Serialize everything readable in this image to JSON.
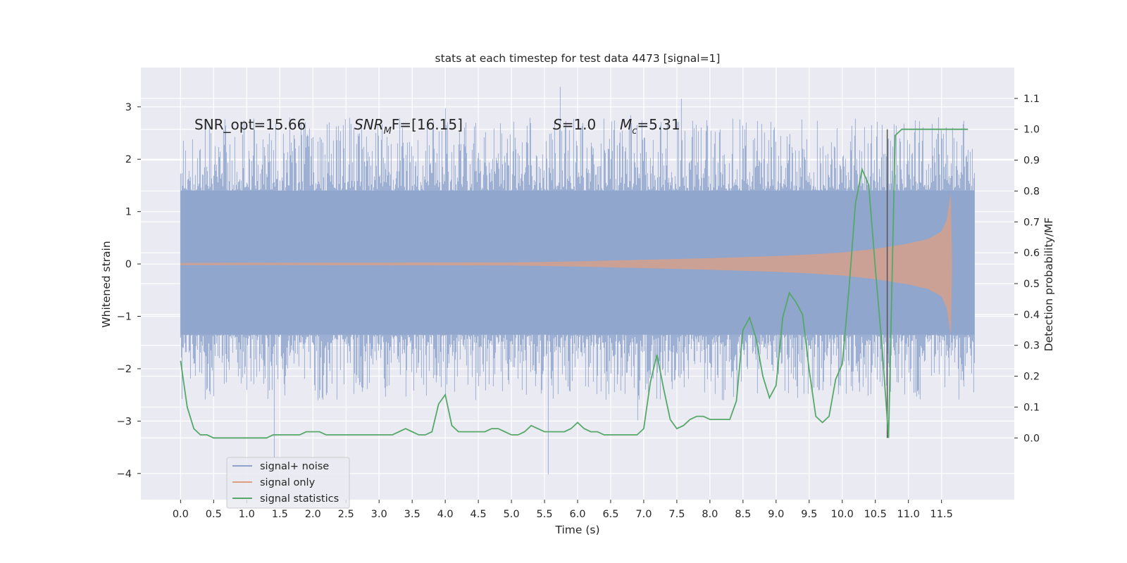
{
  "chart_data": {
    "type": "line",
    "title": "stats at each timestep for test data 4473 [signal=1]",
    "xlabel": "Time (s)",
    "ylabel": "Whitened strain",
    "y2label": "Detection probability/MF",
    "xlim": [
      -0.6,
      12.6
    ],
    "ylim": [
      -4.5,
      3.75
    ],
    "y2lim": [
      -0.2,
      1.2
    ],
    "x_ticks": [
      "0.0",
      "0.5",
      "1.0",
      "1.5",
      "2.0",
      "2.5",
      "3.0",
      "3.5",
      "4.0",
      "4.5",
      "5.0",
      "5.5",
      "6.0",
      "6.5",
      "7.0",
      "7.5",
      "8.0",
      "8.5",
      "9.0",
      "9.5",
      "10.0",
      "10.5",
      "11.0",
      "11.5"
    ],
    "y_ticks": [
      "3",
      "2",
      "1",
      "0",
      "−1",
      "−2",
      "−3",
      "−4"
    ],
    "y2_ticks": [
      "1.1",
      "1.0",
      "0.9",
      "0.8",
      "0.7",
      "0.6",
      "0.5",
      "0.4",
      "0.3",
      "0.2",
      "0.1",
      "0.0"
    ],
    "grid": true,
    "legend_position": "lower-left",
    "annotations": {
      "snr_opt": "SNR_opt=15.66",
      "snr_mf_main": "SNR",
      "snr_mf_sub": "M",
      "snr_mf_rest": "F=[16.15]",
      "s_italic": "S",
      "s_rest": "=1.0",
      "mc_main": "M",
      "mc_sub": "c",
      "mc_rest": "=5.31"
    },
    "marker_time": 10.68,
    "series": [
      {
        "name": "signal+ noise",
        "color": "#8fa4cc",
        "axis": "left",
        "envelope": {
          "x_range": [
            0.0,
            12.0
          ],
          "core_band": [
            -1.35,
            1.4
          ],
          "typical_peaks": [
            -2.1,
            2.3
          ],
          "extreme_max": 3.4,
          "extreme_min": -4.1
        }
      },
      {
        "name": "signal only",
        "color": "#dd9f80",
        "axis": "left",
        "amplitude": {
          "t": [
            0.0,
            5.0,
            6.0,
            7.0,
            8.0,
            9.0,
            9.5,
            10.0,
            10.5,
            11.0,
            11.3,
            11.5,
            11.58,
            11.62,
            11.64,
            11.66,
            12.0
          ],
          "a": [
            0.02,
            0.03,
            0.05,
            0.08,
            0.11,
            0.15,
            0.18,
            0.22,
            0.29,
            0.39,
            0.48,
            0.62,
            0.85,
            1.2,
            1.35,
            0.0,
            0.0
          ]
        }
      },
      {
        "name": "signal statistics",
        "color": "#55a868",
        "axis": "right",
        "x": [
          0.0,
          0.1,
          0.2,
          0.3,
          0.4,
          0.5,
          0.6,
          0.7,
          0.8,
          0.9,
          1.0,
          1.1,
          1.2,
          1.3,
          1.4,
          1.5,
          1.6,
          1.7,
          1.8,
          1.9,
          2.0,
          2.1,
          2.2,
          2.3,
          2.4,
          2.5,
          2.6,
          2.7,
          2.8,
          2.9,
          3.0,
          3.1,
          3.2,
          3.3,
          3.4,
          3.5,
          3.6,
          3.7,
          3.8,
          3.9,
          4.0,
          4.1,
          4.2,
          4.3,
          4.4,
          4.5,
          4.6,
          4.7,
          4.8,
          4.9,
          5.0,
          5.1,
          5.2,
          5.3,
          5.4,
          5.5,
          5.6,
          5.7,
          5.8,
          5.9,
          6.0,
          6.1,
          6.2,
          6.3,
          6.4,
          6.5,
          6.6,
          6.7,
          6.8,
          6.9,
          7.0,
          7.1,
          7.2,
          7.3,
          7.4,
          7.5,
          7.6,
          7.7,
          7.8,
          7.9,
          8.0,
          8.1,
          8.2,
          8.3,
          8.4,
          8.5,
          8.6,
          8.7,
          8.8,
          8.9,
          9.0,
          9.1,
          9.2,
          9.3,
          9.4,
          9.5,
          9.6,
          9.7,
          9.8,
          9.9,
          10.0,
          10.1,
          10.2,
          10.3,
          10.4,
          10.5,
          10.6,
          10.7,
          10.8,
          10.9,
          11.0,
          11.1,
          11.2,
          11.3,
          11.4,
          11.5,
          11.6,
          11.7,
          11.8,
          11.9
        ],
        "y": [
          0.25,
          0.1,
          0.03,
          0.01,
          0.01,
          0.0,
          0.0,
          0.0,
          0.0,
          0.0,
          0.0,
          0.0,
          0.0,
          0.0,
          0.01,
          0.01,
          0.01,
          0.01,
          0.01,
          0.02,
          0.02,
          0.02,
          0.01,
          0.01,
          0.01,
          0.01,
          0.01,
          0.01,
          0.01,
          0.01,
          0.01,
          0.01,
          0.01,
          0.02,
          0.03,
          0.02,
          0.01,
          0.01,
          0.02,
          0.11,
          0.14,
          0.04,
          0.02,
          0.02,
          0.02,
          0.02,
          0.02,
          0.03,
          0.03,
          0.02,
          0.01,
          0.01,
          0.02,
          0.04,
          0.03,
          0.02,
          0.02,
          0.02,
          0.02,
          0.03,
          0.05,
          0.03,
          0.02,
          0.02,
          0.01,
          0.01,
          0.01,
          0.01,
          0.01,
          0.01,
          0.03,
          0.18,
          0.27,
          0.16,
          0.06,
          0.03,
          0.04,
          0.06,
          0.07,
          0.07,
          0.06,
          0.06,
          0.06,
          0.06,
          0.12,
          0.35,
          0.39,
          0.32,
          0.2,
          0.13,
          0.17,
          0.39,
          0.47,
          0.44,
          0.4,
          0.22,
          0.07,
          0.05,
          0.07,
          0.19,
          0.24,
          0.48,
          0.76,
          0.87,
          0.82,
          0.55,
          0.3,
          0.0,
          0.98,
          1.0,
          1.0,
          1.0,
          1.0,
          1.0,
          1.0,
          1.0,
          1.0,
          1.0,
          1.0,
          1.0
        ]
      }
    ]
  }
}
